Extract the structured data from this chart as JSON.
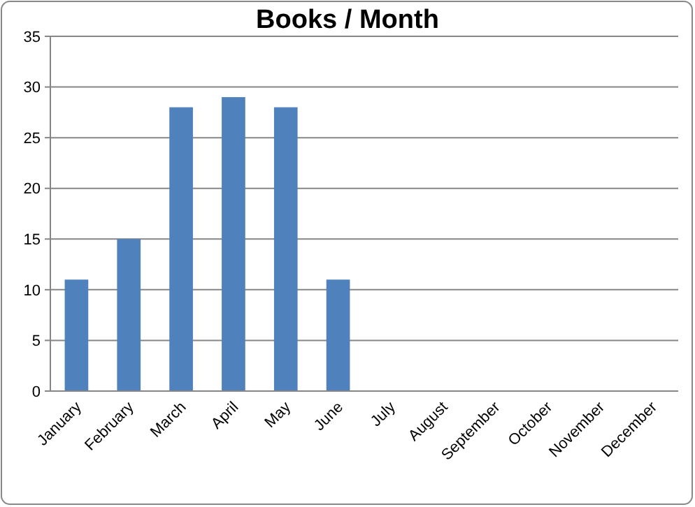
{
  "chart_data": {
    "type": "bar",
    "title": "Books / Month",
    "categories": [
      "January",
      "February",
      "March",
      "April",
      "May",
      "June",
      "July",
      "August",
      "September",
      "October",
      "November",
      "December"
    ],
    "values": [
      11,
      15,
      28,
      29,
      28,
      11,
      null,
      null,
      null,
      null,
      null,
      null
    ],
    "color": "#4f81bd",
    "ylim": [
      0,
      35
    ],
    "yticks": [
      0,
      5,
      10,
      15,
      20,
      25,
      30,
      35
    ],
    "grid": "y"
  }
}
